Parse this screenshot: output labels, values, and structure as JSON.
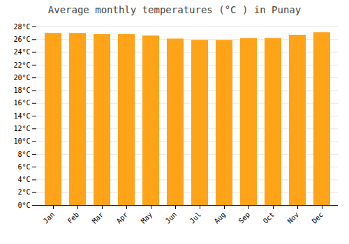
{
  "chart_data": {
    "type": "bar",
    "title": "Average monthly temperatures (°C ) in Punay",
    "categories": [
      "Jan",
      "Feb",
      "Mar",
      "Apr",
      "May",
      "Jun",
      "Jul",
      "Aug",
      "Sep",
      "Oct",
      "Nov",
      "Dec"
    ],
    "values": [
      27.0,
      27.0,
      26.8,
      26.8,
      26.6,
      26.1,
      25.9,
      25.9,
      26.2,
      26.2,
      26.7,
      27.1
    ],
    "color": "#FFA318",
    "ylim": [
      0,
      28
    ],
    "yticks": [
      {
        "value": 0,
        "label": "0°C"
      },
      {
        "value": 2,
        "label": "2°C"
      },
      {
        "value": 4,
        "label": "4°C"
      },
      {
        "value": 6,
        "label": "6°C"
      },
      {
        "value": 8,
        "label": "8°C"
      },
      {
        "value": 10,
        "label": "10°C"
      },
      {
        "value": 12,
        "label": "12°C"
      },
      {
        "value": 14,
        "label": "14°C"
      },
      {
        "value": 16,
        "label": "16°C"
      },
      {
        "value": 18,
        "label": "18°C"
      },
      {
        "value": 20,
        "label": "20°C"
      },
      {
        "value": 22,
        "label": "22°C"
      },
      {
        "value": 24,
        "label": "24°C"
      },
      {
        "value": 26,
        "label": "26°C"
      },
      {
        "value": 28,
        "label": "28°C"
      }
    ],
    "grid": true
  }
}
